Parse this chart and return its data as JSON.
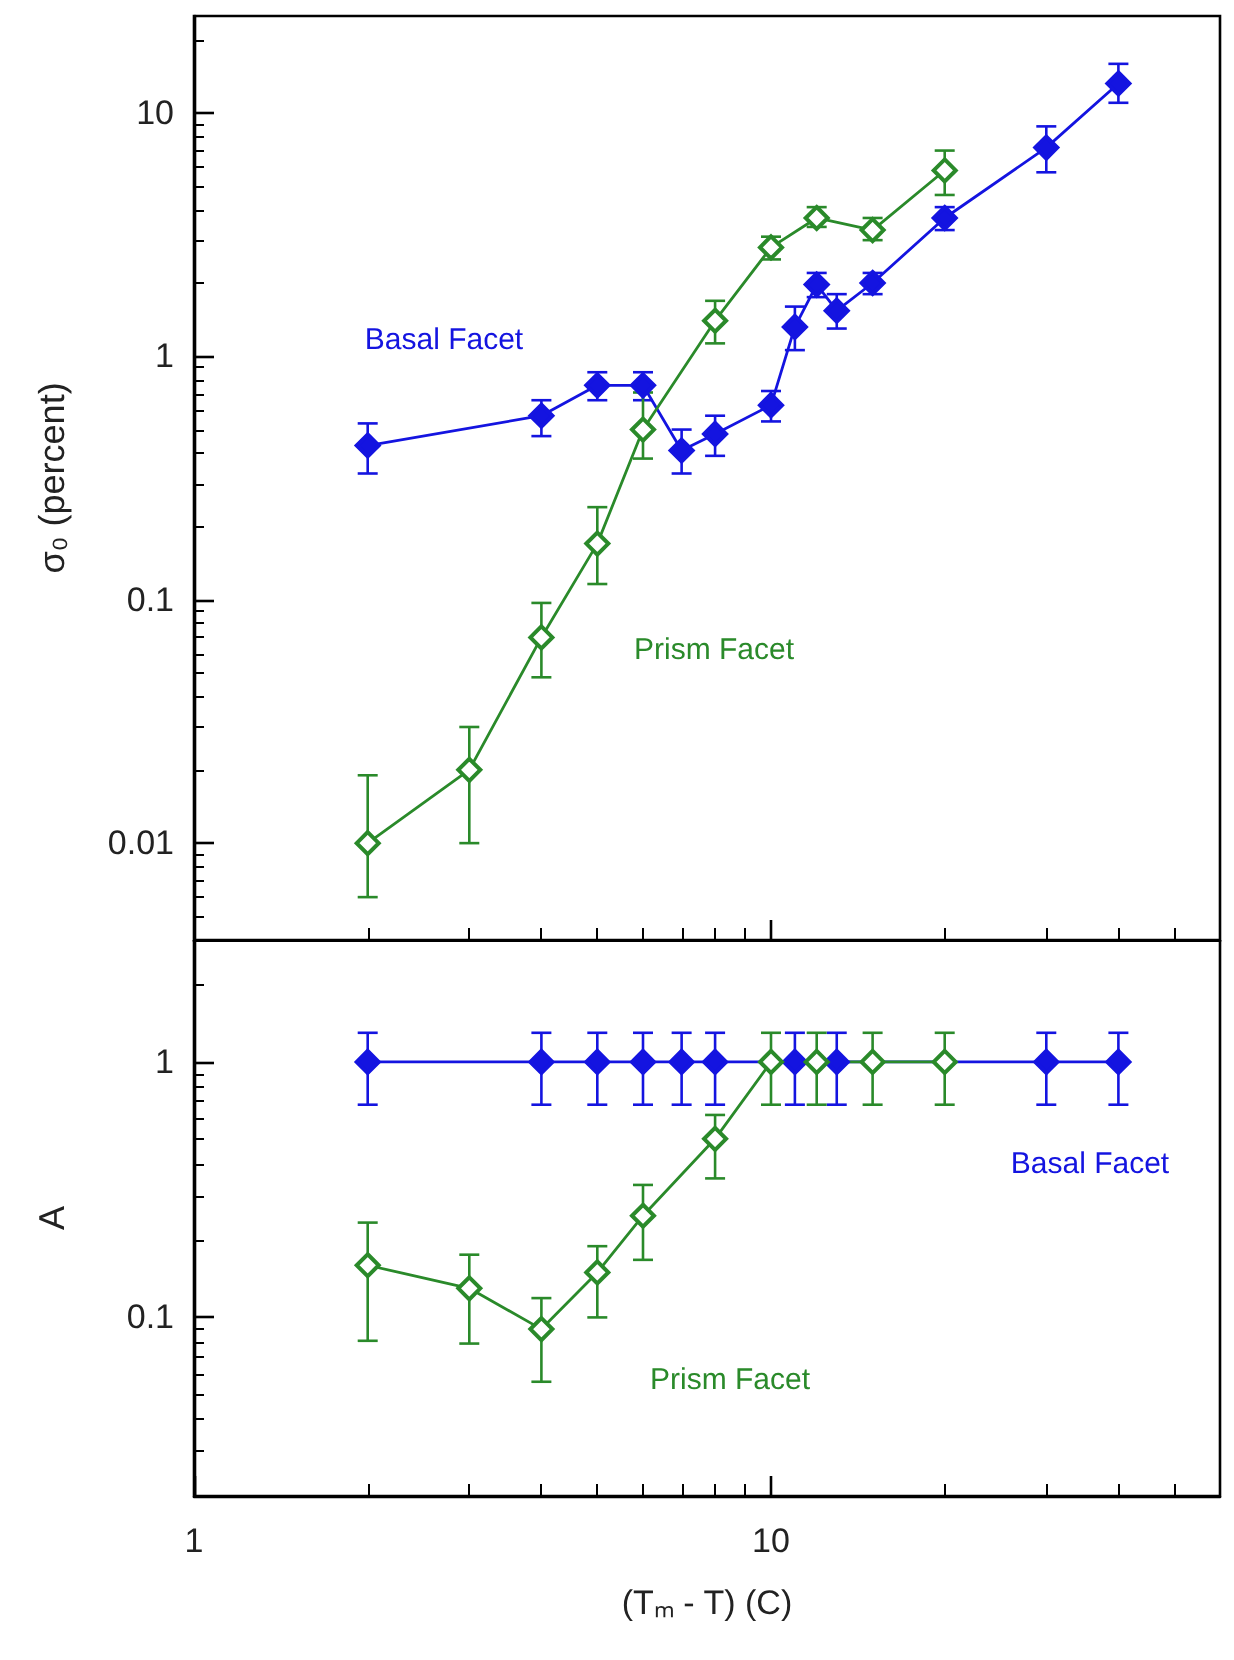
{
  "chart_data": [
    {
      "type": "line",
      "ylabel": "σ₀ (percent)",
      "log": "xy",
      "marker": "diamond",
      "tick_labels": "y",
      "xlim": [
        1,
        60
      ],
      "xticks": [
        {
          "value": 2,
          "label": null
        },
        {
          "value": 3,
          "label": null
        },
        {
          "value": 4,
          "label": null
        },
        {
          "value": 5,
          "label": null
        },
        {
          "value": 6,
          "label": null
        },
        {
          "value": 7,
          "label": null
        },
        {
          "value": 8,
          "label": null
        },
        {
          "value": 9,
          "label": null
        },
        {
          "value": 10,
          "label": null
        },
        {
          "value": 20,
          "label": null
        },
        {
          "value": 30,
          "label": null
        },
        {
          "value": 40,
          "label": null
        },
        {
          "value": 50,
          "label": null
        }
      ],
      "ylim": [
        0.004,
        25
      ],
      "yticks": [
        {
          "value": 0.005,
          "label": null
        },
        {
          "value": 0.006,
          "label": null
        },
        {
          "value": 0.007,
          "label": null
        },
        {
          "value": 0.008,
          "label": null
        },
        {
          "value": 0.009,
          "label": null
        },
        0.01,
        {
          "value": 0.02,
          "label": null
        },
        {
          "value": 0.03,
          "label": null
        },
        {
          "value": 0.04,
          "label": null
        },
        {
          "value": 0.05,
          "label": null
        },
        {
          "value": 0.06,
          "label": null
        },
        {
          "value": 0.07,
          "label": null
        },
        {
          "value": 0.08,
          "label": null
        },
        {
          "value": 0.09,
          "label": null
        },
        0.1,
        {
          "value": 0.2,
          "label": null
        },
        {
          "value": 0.3,
          "label": null
        },
        {
          "value": 0.4,
          "label": null
        },
        {
          "value": 0.5,
          "label": null
        },
        {
          "value": 0.6,
          "label": null
        },
        {
          "value": 0.7,
          "label": null
        },
        {
          "value": 0.8,
          "label": null
        },
        {
          "value": 0.9,
          "label": null
        },
        1,
        {
          "value": 2,
          "label": null
        },
        {
          "value": 3,
          "label": null
        },
        {
          "value": 4,
          "label": null
        },
        {
          "value": 5,
          "label": null
        },
        {
          "value": 6,
          "label": null
        },
        {
          "value": 7,
          "label": null
        },
        {
          "value": 8,
          "label": null
        },
        {
          "value": 9,
          "label": null
        },
        10,
        {
          "value": 20,
          "label": null
        }
      ],
      "series": [
        {
          "name": "Basal Facet",
          "color": "#1414e0",
          "x": [
            2,
            4,
            5,
            6,
            7,
            8,
            10,
            11,
            12,
            13,
            15,
            20,
            30,
            40
          ],
          "values": [
            0.43,
            0.57,
            0.76,
            0.76,
            0.41,
            0.48,
            0.63,
            1.32,
            1.97,
            1.54,
            2.0,
            3.7,
            7.2,
            13.2
          ],
          "errors": [
            [
              0.33,
              0.53
            ],
            [
              0.47,
              0.66
            ],
            [
              0.66,
              0.86
            ],
            [
              0.66,
              0.86
            ],
            [
              0.33,
              0.5
            ],
            [
              0.39,
              0.57
            ],
            [
              0.54,
              0.72
            ],
            [
              1.06,
              1.6
            ],
            [
              1.75,
              2.2
            ],
            [
              1.3,
              1.8
            ],
            [
              1.8,
              2.2
            ],
            [
              3.3,
              4.1
            ],
            [
              5.7,
              8.8
            ],
            [
              11,
              15.9
            ]
          ]
        },
        {
          "name": "Prism Facet",
          "color": "#2a8a2a",
          "x": [
            2,
            3,
            4,
            5,
            6,
            8,
            10,
            12,
            15,
            20
          ],
          "values": [
            0.01,
            0.02,
            0.07,
            0.17,
            0.5,
            1.4,
            2.8,
            3.7,
            3.3,
            5.8
          ],
          "errors": [
            [
              0.006,
              0.019
            ],
            [
              0.01,
              0.03
            ],
            [
              0.048,
              0.097
            ],
            [
              0.116,
              0.24
            ],
            [
              0.38,
              0.71
            ],
            [
              1.13,
              1.69
            ],
            [
              2.5,
              3.1
            ],
            [
              3.4,
              4.1
            ],
            [
              3.0,
              3.7
            ],
            [
              4.6,
              7.0
            ]
          ]
        }
      ]
    },
    {
      "type": "line",
      "ylabel": "A",
      "xlabel": "(Tₘ - T) (C)",
      "log": "xy",
      "marker": "diamond",
      "xlim": [
        1,
        60
      ],
      "xticks": [
        1,
        {
          "value": 2,
          "label": null
        },
        {
          "value": 3,
          "label": null
        },
        {
          "value": 4,
          "label": null
        },
        {
          "value": 5,
          "label": null
        },
        {
          "value": 6,
          "label": null
        },
        {
          "value": 7,
          "label": null
        },
        {
          "value": 8,
          "label": null
        },
        {
          "value": 9,
          "label": null
        },
        10,
        {
          "value": 20,
          "label": null
        },
        {
          "value": 30,
          "label": null
        },
        {
          "value": 40,
          "label": null
        },
        {
          "value": 50,
          "label": null
        }
      ],
      "ylim": [
        0.02,
        3
      ],
      "yticks": [
        {
          "value": 0.03,
          "label": null
        },
        {
          "value": 0.04,
          "label": null
        },
        {
          "value": 0.05,
          "label": null
        },
        {
          "value": 0.06,
          "label": null
        },
        {
          "value": 0.07,
          "label": null
        },
        {
          "value": 0.08,
          "label": null
        },
        {
          "value": 0.09,
          "label": null
        },
        0.1,
        {
          "value": 0.2,
          "label": null
        },
        {
          "value": 0.3,
          "label": null
        },
        {
          "value": 0.4,
          "label": null
        },
        {
          "value": 0.5,
          "label": null
        },
        {
          "value": 0.6,
          "label": null
        },
        {
          "value": 0.7,
          "label": null
        },
        {
          "value": 0.8,
          "label": null
        },
        {
          "value": 0.9,
          "label": null
        },
        1,
        {
          "value": 2,
          "label": null
        }
      ],
      "series": [
        {
          "name": "Basal Facet",
          "color": "#1414e0",
          "x": [
            2,
            4,
            5,
            6,
            7,
            8,
            11,
            13,
            30,
            40
          ],
          "values": [
            1,
            1,
            1,
            1,
            1,
            1,
            1,
            1,
            1,
            1
          ],
          "errors": [
            [
              0.68,
              1.3
            ],
            [
              0.68,
              1.3
            ],
            [
              0.68,
              1.3
            ],
            [
              0.68,
              1.3
            ],
            [
              0.68,
              1.3
            ],
            [
              0.68,
              1.3
            ],
            [
              0.68,
              1.3
            ],
            [
              0.68,
              1.3
            ],
            [
              0.68,
              1.3
            ],
            [
              0.68,
              1.3
            ]
          ]
        },
        {
          "name": "Prism Facet",
          "color": "#2a8a2a",
          "x": [
            2,
            3,
            4,
            5,
            6,
            8,
            10,
            12,
            15,
            20
          ],
          "values": [
            0.16,
            0.13,
            0.09,
            0.15,
            0.25,
            0.5,
            1,
            1,
            1,
            1
          ],
          "errors": [
            [
              0.081,
              0.235
            ],
            [
              0.079,
              0.176
            ],
            [
              0.056,
              0.119
            ],
            [
              0.1,
              0.19
            ],
            [
              0.168,
              0.33
            ],
            [
              0.35,
              0.62
            ],
            [
              0.68,
              1.3
            ],
            [
              0.68,
              1.3
            ],
            [
              0.68,
              1.3
            ],
            [
              0.68,
              1.3
            ]
          ]
        }
      ]
    }
  ]
}
